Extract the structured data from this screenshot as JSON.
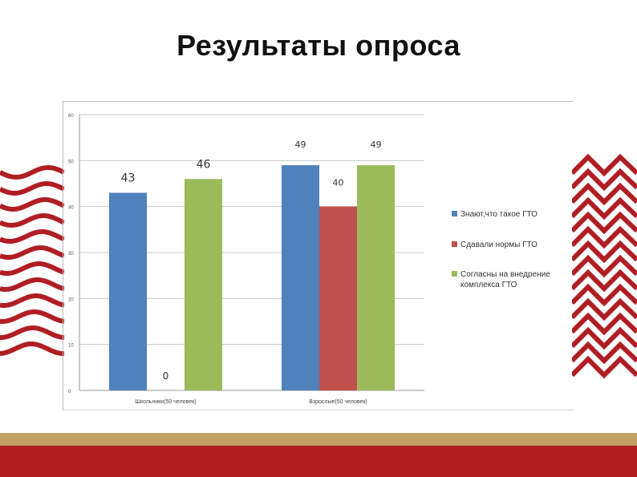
{
  "slide": {
    "title": "Результаты опроса"
  },
  "colors": {
    "accent_red": "#b01e24",
    "accent_gold": "#c0a266",
    "wave_red": "#b01e24"
  },
  "chart_data": {
    "type": "bar",
    "categories": [
      "Школьники(50 человек)",
      "Взрослые(50 человек)"
    ],
    "series": [
      {
        "name": "Знают,что такое ГТО",
        "values": [
          43,
          49
        ],
        "color": "#4f81bd"
      },
      {
        "name": "Сдавали нормы ГТО",
        "values": [
          0,
          40
        ],
        "color": "#c0504d"
      },
      {
        "name": "Согласны на внедрение комплекса ГТО",
        "values": [
          46,
          49
        ],
        "color": "#9bbb59"
      }
    ],
    "ylim": [
      0,
      60
    ],
    "yticks": [
      0,
      10,
      20,
      30,
      40,
      50,
      60
    ],
    "grid": true,
    "legend_position": "right",
    "data_labels": [
      {
        "series": 0,
        "category": 0,
        "text": "43"
      },
      {
        "series": 1,
        "category": 0,
        "text": "0"
      },
      {
        "series": 2,
        "category": 0,
        "text": "46"
      },
      {
        "series": 0,
        "category": 1,
        "text": "49"
      },
      {
        "series": 1,
        "category": 1,
        "text": "40"
      },
      {
        "series": 2,
        "category": 1,
        "text": "49"
      }
    ]
  }
}
